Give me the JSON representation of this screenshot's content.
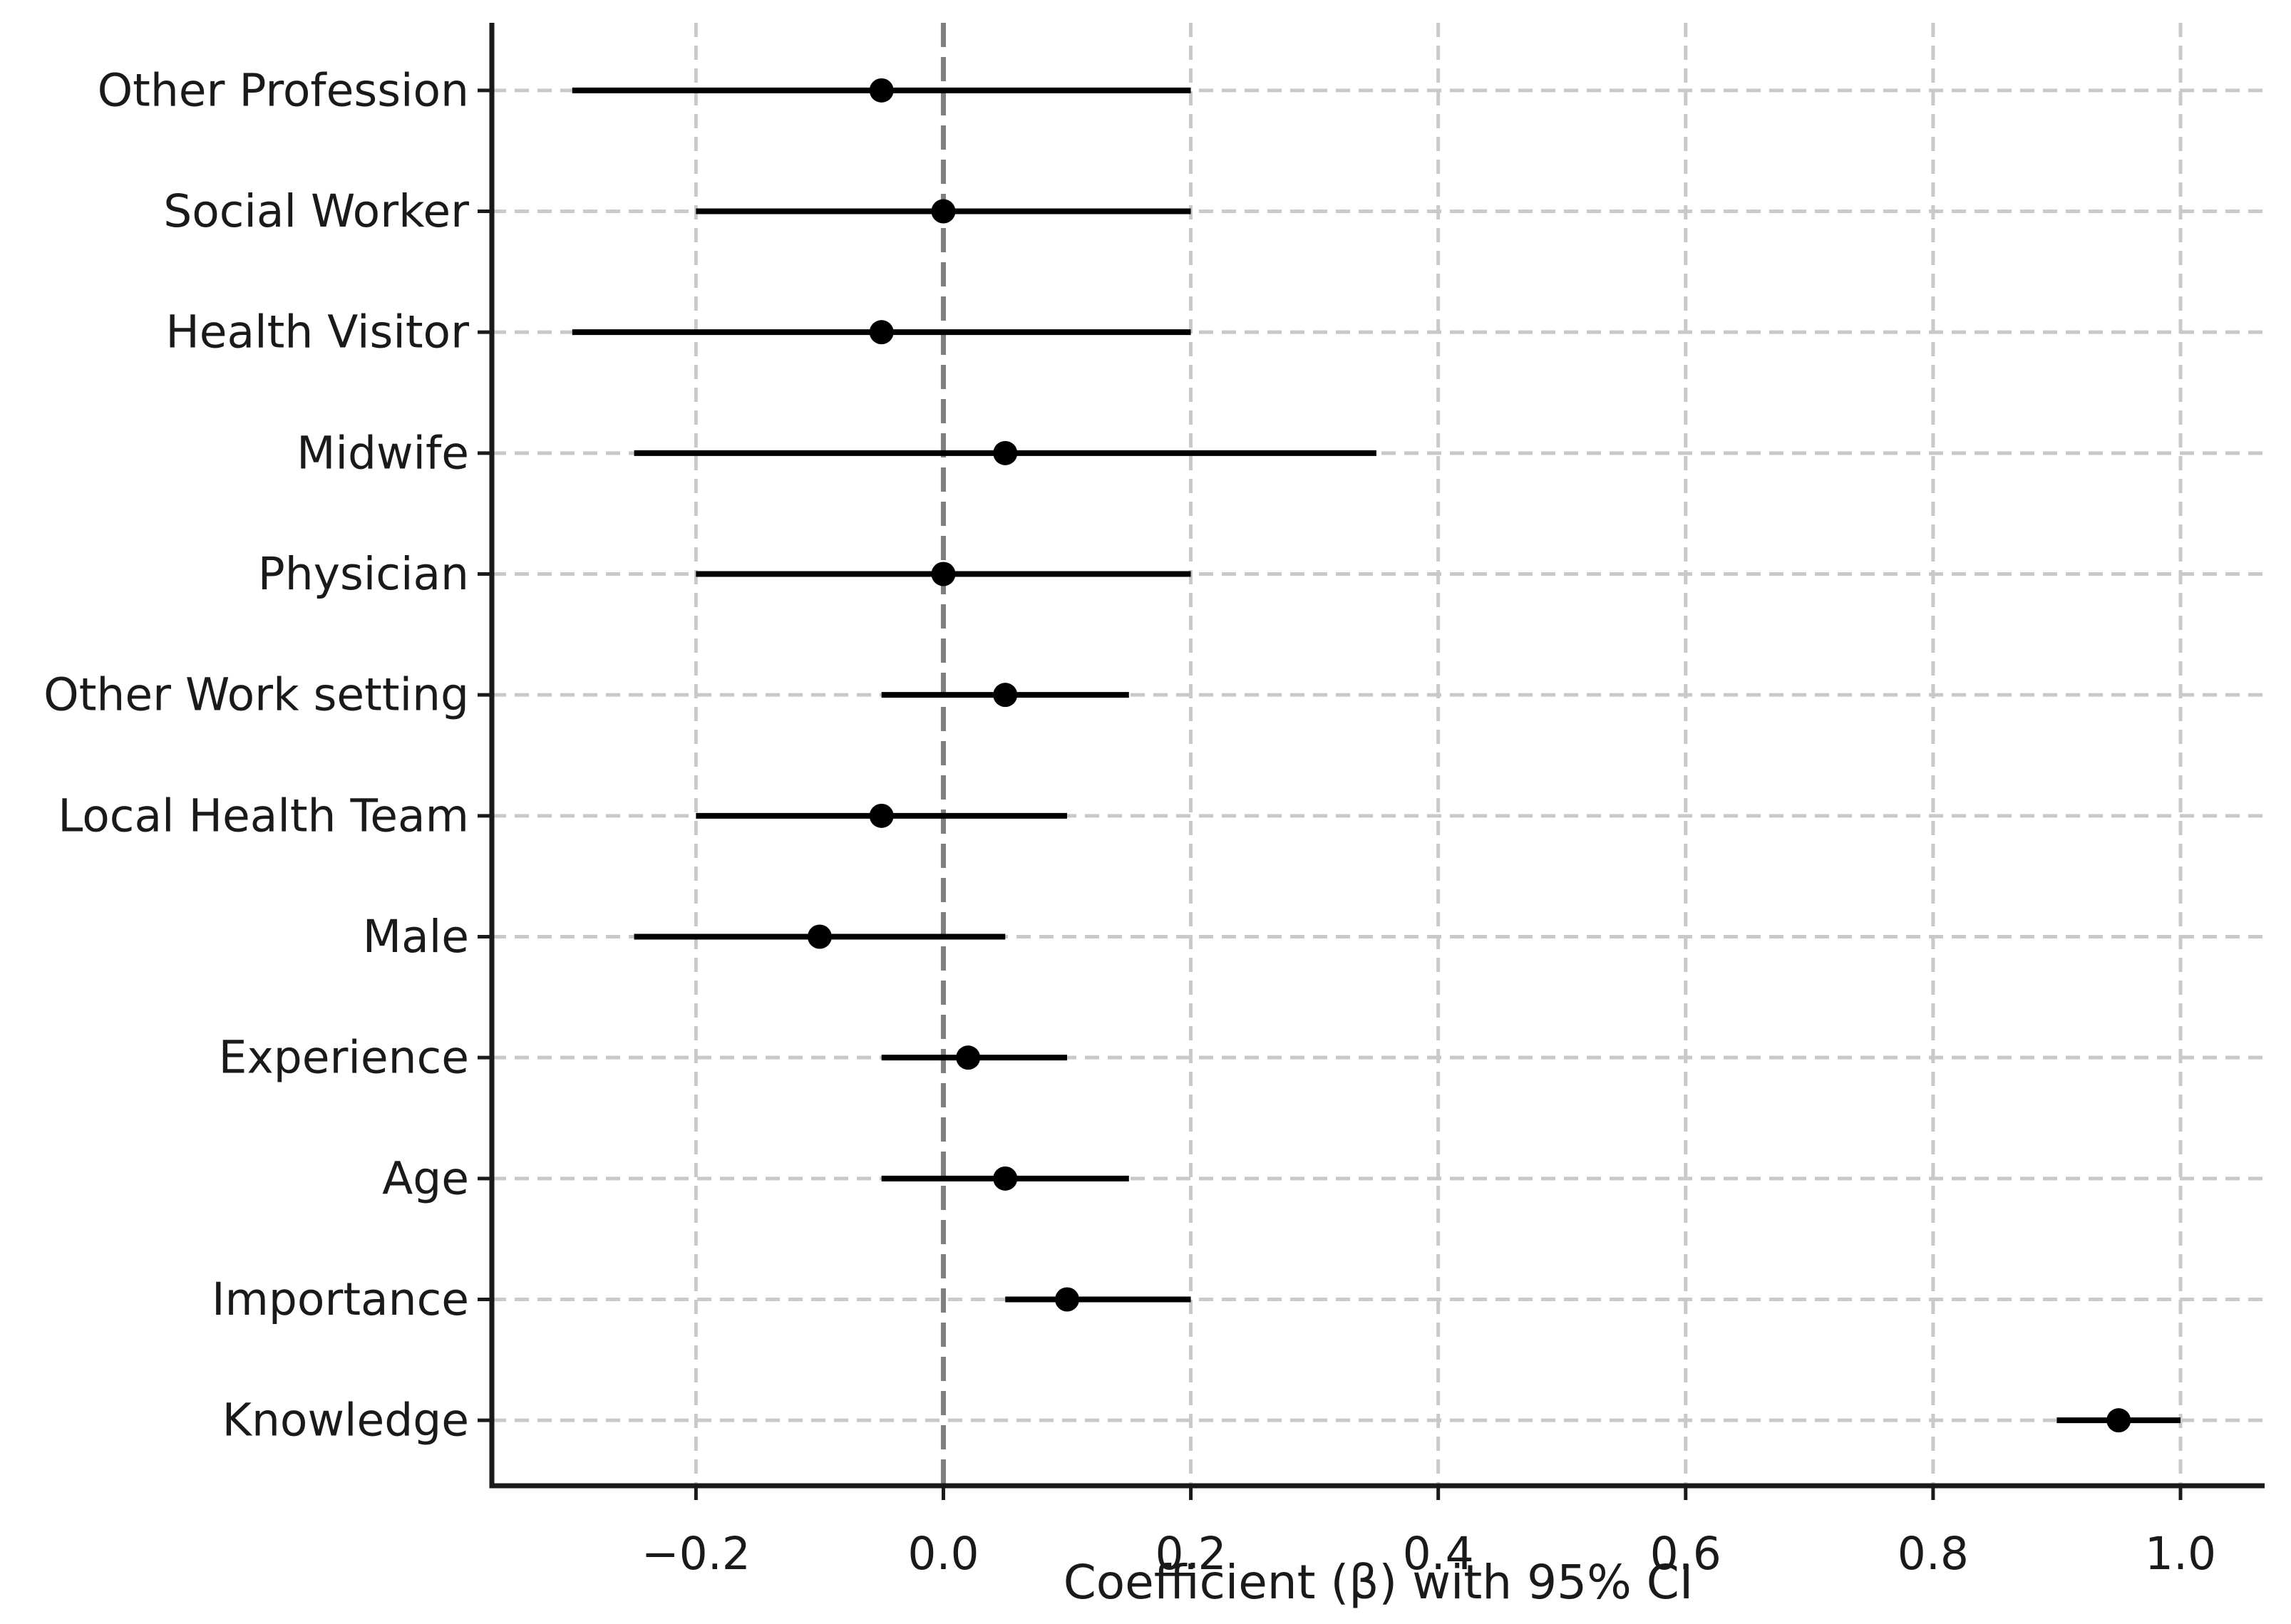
{
  "chart_data": {
    "type": "scatter",
    "subtype": "forest-errorbar",
    "title": "",
    "xlabel": "Coefficient (β) with 95% CI",
    "ylabel": "",
    "grid": true,
    "legend": false,
    "background": "#ffffff",
    "categories": [
      "Other Profession",
      "Social Worker",
      "Health Visitor",
      "Midwife",
      "Physician",
      "Other Work setting",
      "Local Health Team",
      "Male",
      "Experience",
      "Age",
      "Importance",
      "Knowledge"
    ],
    "points": [
      {
        "label": "Other Profession",
        "beta": -0.05,
        "ci_low": -0.3,
        "ci_high": 0.2
      },
      {
        "label": "Social Worker",
        "beta": 0.0,
        "ci_low": -0.2,
        "ci_high": 0.2
      },
      {
        "label": "Health Visitor",
        "beta": -0.05,
        "ci_low": -0.3,
        "ci_high": 0.2
      },
      {
        "label": "Midwife",
        "beta": 0.05,
        "ci_low": -0.25,
        "ci_high": 0.35
      },
      {
        "label": "Physician",
        "beta": 0.0,
        "ci_low": -0.2,
        "ci_high": 0.2
      },
      {
        "label": "Other Work setting",
        "beta": 0.05,
        "ci_low": -0.05,
        "ci_high": 0.15
      },
      {
        "label": "Local Health Team",
        "beta": -0.05,
        "ci_low": -0.2,
        "ci_high": 0.1
      },
      {
        "label": "Male",
        "beta": -0.1,
        "ci_low": -0.25,
        "ci_high": 0.05
      },
      {
        "label": "Experience",
        "beta": 0.02,
        "ci_low": -0.05,
        "ci_high": 0.1
      },
      {
        "label": "Age",
        "beta": 0.05,
        "ci_low": -0.05,
        "ci_high": 0.15
      },
      {
        "label": "Importance",
        "beta": 0.1,
        "ci_low": 0.05,
        "ci_high": 0.2
      },
      {
        "label": "Knowledge",
        "beta": 0.95,
        "ci_low": 0.9,
        "ci_high": 1.0
      }
    ],
    "x_axis": {
      "range": [
        -0.365,
        1.068
      ],
      "zero_line": 0.0,
      "ticks": [
        {
          "value": -0.2,
          "label": "−0.2"
        },
        {
          "value": 0.0,
          "label": "0.0"
        },
        {
          "value": 0.2,
          "label": "0.2"
        },
        {
          "value": 0.4,
          "label": "0.4"
        },
        {
          "value": 0.6,
          "label": "0.6"
        },
        {
          "value": 0.8,
          "label": "0.8"
        },
        {
          "value": 1.0,
          "label": "1.0"
        }
      ]
    },
    "colors": {
      "point": "#000000",
      "ci": "#000000",
      "zero_line": "#7f7f7f",
      "gridline": "#c9c9c9",
      "spine": "#1a1a1a",
      "text": "#1a1a1a"
    }
  }
}
